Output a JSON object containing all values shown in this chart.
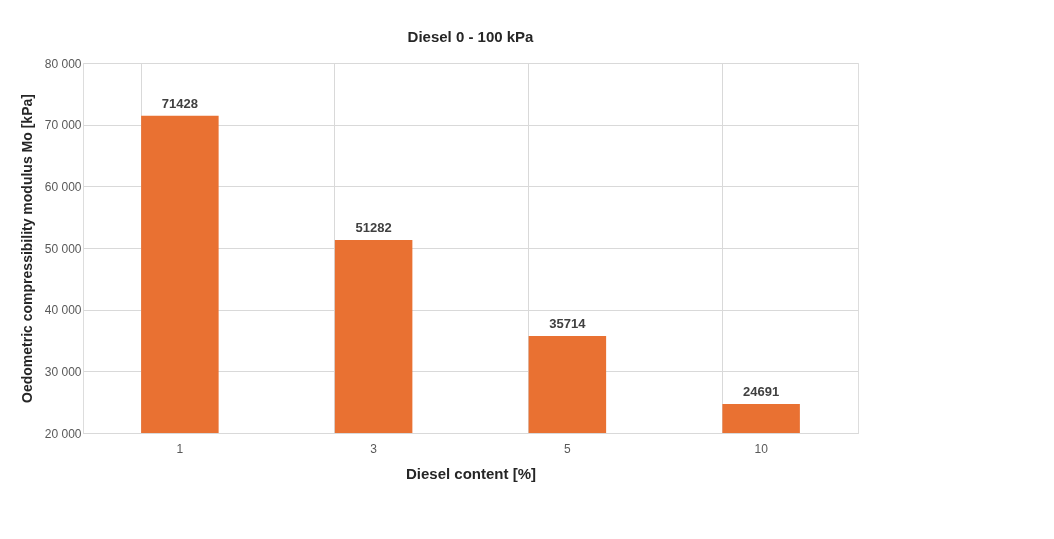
{
  "chart_data": {
    "type": "bar",
    "title": "Diesel 0 - 100 kPa",
    "xlabel": "Diesel content [%]",
    "ylabel": "Oedometric compressibility modulus Mo [kPa]",
    "categories": [
      "1",
      "3",
      "5",
      "10"
    ],
    "series": [
      {
        "color": "#e97132",
        "values": [
          71428,
          51282,
          35714,
          24691
        ]
      }
    ],
    "ylim": [
      20000,
      80000
    ],
    "yticks": [
      {
        "value": 20000,
        "label": "20 000"
      },
      {
        "value": 30000,
        "label": "30 000"
      },
      {
        "value": 40000,
        "label": "40 000"
      },
      {
        "value": 50000,
        "label": "50 000"
      },
      {
        "value": 60000,
        "label": "60 000"
      },
      {
        "value": 70000,
        "label": "70 000"
      },
      {
        "value": 80000,
        "label": "80 000"
      }
    ],
    "grid": true,
    "legend": false,
    "data_labels": true
  }
}
